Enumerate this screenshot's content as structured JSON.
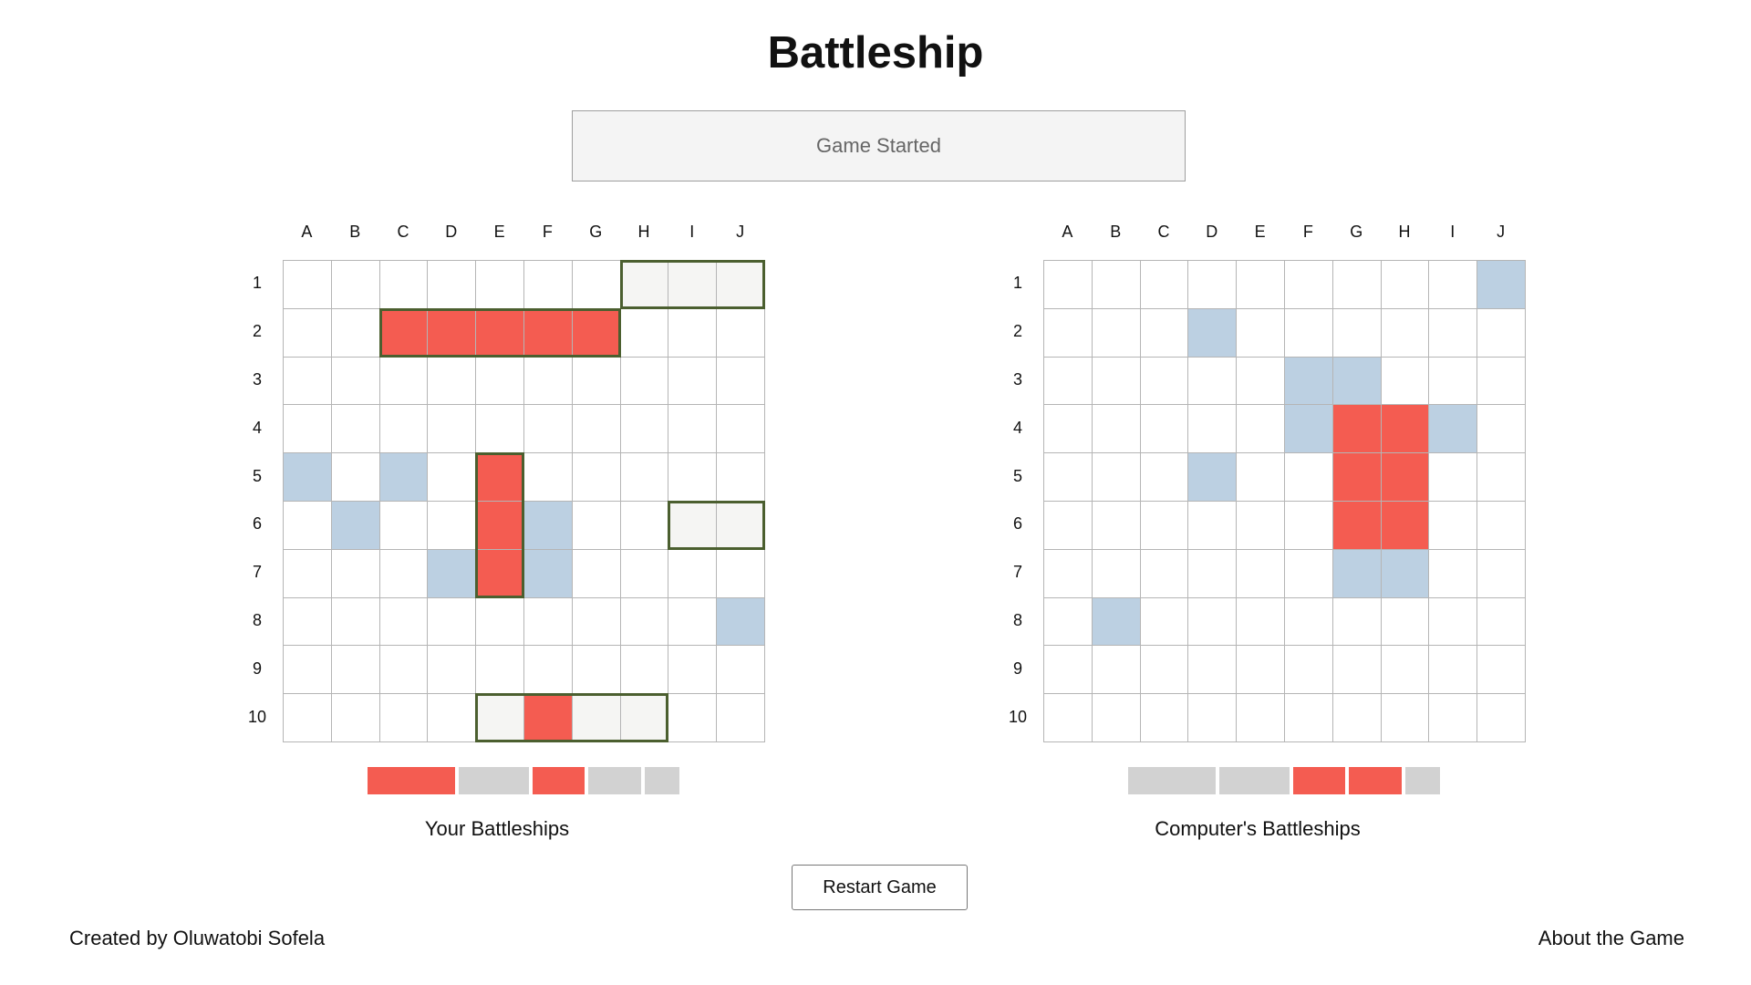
{
  "title": "Battleship",
  "status_message": "Game Started",
  "columns": [
    "A",
    "B",
    "C",
    "D",
    "E",
    "F",
    "G",
    "H",
    "I",
    "J"
  ],
  "rows": [
    "1",
    "2",
    "3",
    "4",
    "5",
    "6",
    "7",
    "8",
    "9",
    "10"
  ],
  "colors": {
    "hit": "#f45c51",
    "miss": "#bcd0e2",
    "ship": "#f5f5f3",
    "ship_outline": "#4b5f2f",
    "afloat_indicator": "#d2d2d2"
  },
  "player_board": {
    "caption": "Your Battleships",
    "grid": [
      [
        "",
        "",
        "",
        "",
        "",
        "",
        "",
        "ship",
        "ship",
        "ship"
      ],
      [
        "",
        "",
        "hit",
        "hit",
        "hit",
        "hit",
        "hit",
        "",
        "",
        ""
      ],
      [
        "",
        "",
        "",
        "",
        "",
        "",
        "",
        "",
        "",
        ""
      ],
      [
        "",
        "",
        "",
        "",
        "",
        "",
        "",
        "",
        "",
        ""
      ],
      [
        "miss",
        "",
        "miss",
        "",
        "hit",
        "",
        "",
        "",
        "",
        ""
      ],
      [
        "",
        "miss",
        "",
        "",
        "hit",
        "miss",
        "",
        "",
        "ship",
        "ship"
      ],
      [
        "",
        "",
        "",
        "miss",
        "hit",
        "miss",
        "",
        "",
        "",
        ""
      ],
      [
        "",
        "",
        "",
        "",
        "",
        "",
        "",
        "",
        "",
        "miss"
      ],
      [
        "",
        "",
        "",
        "",
        "",
        "",
        "",
        "",
        "",
        ""
      ],
      [
        "",
        "",
        "",
        "",
        "ship",
        "hit",
        "ship",
        "ship",
        "",
        ""
      ]
    ],
    "ships": [
      {
        "cells": [
          "H1",
          "I1",
          "J1"
        ]
      },
      {
        "cells": [
          "C2",
          "D2",
          "E2",
          "F2",
          "G2"
        ]
      },
      {
        "cells": [
          "E5",
          "E6",
          "E7"
        ]
      },
      {
        "cells": [
          "I6",
          "J6"
        ]
      },
      {
        "cells": [
          "E10",
          "F10",
          "G10",
          "H10"
        ]
      }
    ],
    "fleet_status": [
      {
        "size": 5,
        "state": "sunk"
      },
      {
        "size": 4,
        "state": "afloat"
      },
      {
        "size": 3,
        "state": "sunk"
      },
      {
        "size": 3,
        "state": "afloat"
      },
      {
        "size": 2,
        "state": "afloat"
      }
    ]
  },
  "computer_board": {
    "caption": "Computer's Battleships",
    "grid": [
      [
        "",
        "",
        "",
        "",
        "",
        "",
        "",
        "",
        "",
        "miss"
      ],
      [
        "",
        "",
        "",
        "miss",
        "",
        "",
        "",
        "",
        "",
        ""
      ],
      [
        "",
        "",
        "",
        "",
        "",
        "miss",
        "miss",
        "",
        "",
        ""
      ],
      [
        "",
        "",
        "",
        "",
        "",
        "miss",
        "hit",
        "hit",
        "miss",
        ""
      ],
      [
        "",
        "",
        "",
        "miss",
        "",
        "",
        "hit",
        "hit",
        "",
        ""
      ],
      [
        "",
        "",
        "",
        "",
        "",
        "",
        "hit",
        "hit",
        "",
        ""
      ],
      [
        "",
        "",
        "",
        "",
        "",
        "",
        "miss",
        "miss",
        "",
        ""
      ],
      [
        "",
        "miss",
        "",
        "",
        "",
        "",
        "",
        "",
        "",
        ""
      ],
      [
        "",
        "",
        "",
        "",
        "",
        "",
        "",
        "",
        "",
        ""
      ],
      [
        "",
        "",
        "",
        "",
        "",
        "",
        "",
        "",
        "",
        ""
      ]
    ],
    "fleet_status": [
      {
        "size": 5,
        "state": "afloat"
      },
      {
        "size": 4,
        "state": "afloat"
      },
      {
        "size": 3,
        "state": "sunk"
      },
      {
        "size": 3,
        "state": "sunk"
      },
      {
        "size": 2,
        "state": "afloat"
      }
    ]
  },
  "restart_label": "Restart Game",
  "footer": {
    "credit": "Created by Oluwatobi Sofela",
    "about_link": "About the Game"
  }
}
